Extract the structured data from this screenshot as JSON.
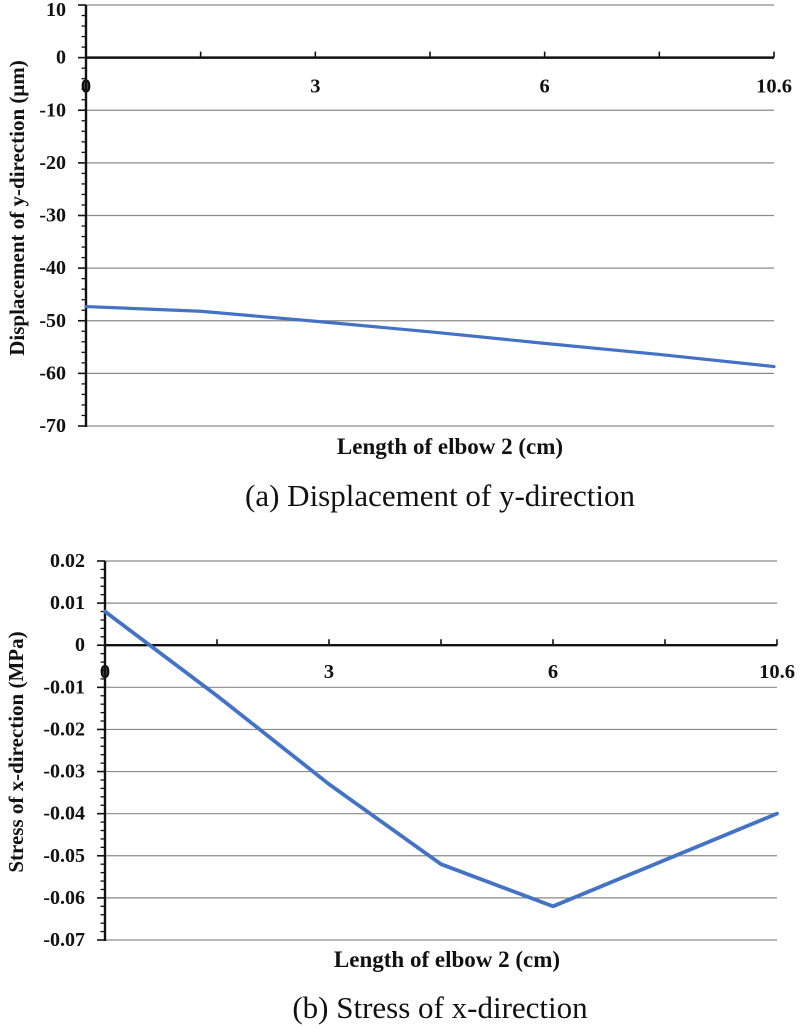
{
  "chart_data": [
    {
      "id": "a",
      "type": "line",
      "caption": "(a) Displacement of y-direction",
      "xlabel": "Length of elbow 2 (cm)",
      "ylabel": "Displacement of y-direction (μm)",
      "x": [
        0,
        1.5,
        3,
        4.5,
        6,
        8.3,
        10.6
      ],
      "x_tick_labels": [
        "0",
        "3",
        "6",
        "10.6"
      ],
      "values": [
        -47.3,
        -48.2,
        -50.1,
        -52.1,
        -54.3,
        -56.4,
        -58.7
      ],
      "y_tick_labels": [
        "10",
        "0",
        "-10",
        "-20",
        "-30",
        "-40",
        "-50",
        "-60",
        "-70"
      ],
      "ylim": [
        -70,
        10
      ],
      "xlim_labels": "category axis, labels every other category",
      "grid": "horizontal",
      "legend": "none",
      "line_color": "#4472C4",
      "gridline_color": "#8a8a8a",
      "axis_color": "#111111"
    },
    {
      "id": "b",
      "type": "line",
      "caption": "(b) Stress of x-direction",
      "xlabel": "Length of elbow 2 (cm)",
      "ylabel": "Stress of x-direction (MPa)",
      "x": [
        0,
        1.5,
        3,
        4.5,
        6,
        8.3,
        10.6
      ],
      "x_tick_labels": [
        "0",
        "3",
        "6",
        "10.6"
      ],
      "values": [
        0.008,
        -0.012,
        -0.033,
        -0.052,
        -0.062,
        -0.051,
        -0.04
      ],
      "y_tick_labels": [
        "0.02",
        "0.01",
        "0",
        "-0.01",
        "-0.02",
        "-0.03",
        "-0.04",
        "-0.05",
        "-0.06",
        "-0.07"
      ],
      "ylim": [
        -0.07,
        0.02
      ],
      "xlim_labels": "category axis, labels every other category",
      "grid": "horizontal",
      "legend": "none",
      "line_color": "#4472C4",
      "gridline_color": "#8a8a8a",
      "axis_color": "#111111"
    }
  ]
}
